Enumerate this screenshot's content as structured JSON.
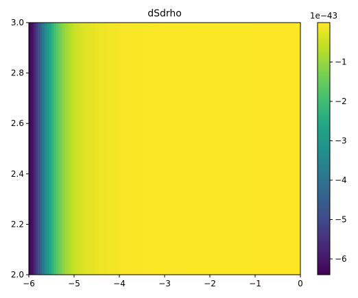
{
  "chart_data": {
    "type": "heatmap",
    "title": "dSdrho",
    "xlabel": "",
    "ylabel": "",
    "xlim": [
      -6,
      0
    ],
    "ylim": [
      2.0,
      3.0
    ],
    "x_ticks": [
      "-6",
      "-5",
      "-4",
      "-3",
      "-2",
      "-1",
      "0"
    ],
    "y_ticks": [
      "2.0",
      "2.2",
      "2.4",
      "2.6",
      "2.8",
      "3.0"
    ],
    "colormap": "viridis",
    "colorbar": {
      "multiplier_label": "1e−43",
      "range": [
        -6.4,
        0
      ],
      "ticks": [
        -1,
        -2,
        -3,
        -4,
        -5,
        -6
      ],
      "tick_labels": [
        "−1",
        "−2",
        "−3",
        "−4",
        "−5",
        "−6"
      ]
    },
    "field": {
      "varies_along": "x",
      "x_samples": [
        -6.0,
        -5.9,
        -5.8,
        -5.7,
        -5.6,
        -5.5,
        -5.4,
        -5.3,
        -5.2,
        -5.1,
        -5.0,
        -4.9,
        -4.8,
        -4.6,
        -4.4,
        -4.2,
        -4.0,
        -3.5,
        -3.0,
        -2.0,
        -1.0,
        0.0
      ],
      "values": [
        -6.4,
        -6.0,
        -5.0,
        -4.0,
        -3.1,
        -2.4,
        -1.8,
        -1.35,
        -1.0,
        -0.75,
        -0.55,
        -0.42,
        -0.33,
        -0.22,
        -0.15,
        -0.1,
        -0.07,
        -0.04,
        -0.02,
        -0.01,
        -0.005,
        0.0
      ]
    },
    "grid": false
  }
}
